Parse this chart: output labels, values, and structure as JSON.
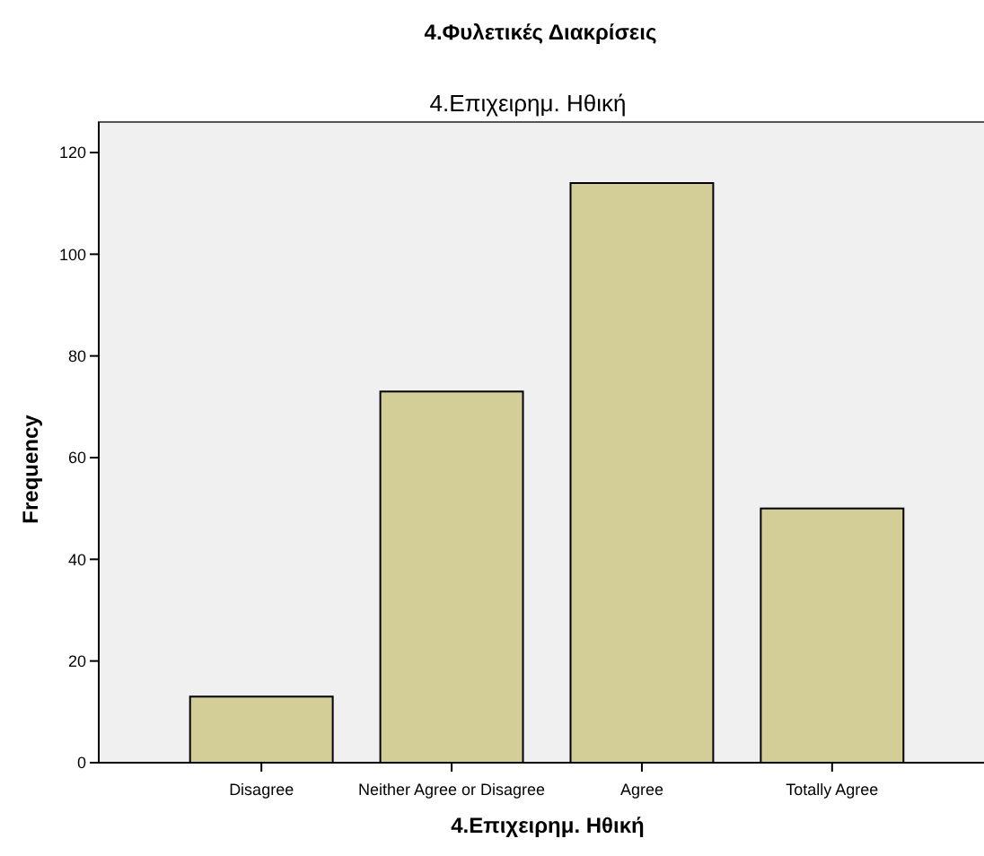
{
  "chart_data": {
    "type": "bar",
    "title": "4.Φυλετικές Διακρίσεις",
    "subtitle": "4.Επιχειρημ. Ηθική",
    "xlabel": "4.Επιχειρημ. Ηθική",
    "ylabel": "Frequency",
    "categories": [
      "Disagree",
      "Neither Agree or Disagree",
      "Agree",
      "Totally Agree"
    ],
    "values": [
      13,
      73,
      114,
      50
    ],
    "color": "#d3cd97",
    "ylim": [
      0,
      126
    ],
    "yticks": [
      0,
      20,
      40,
      60,
      80,
      100,
      120
    ],
    "grid": false
  }
}
